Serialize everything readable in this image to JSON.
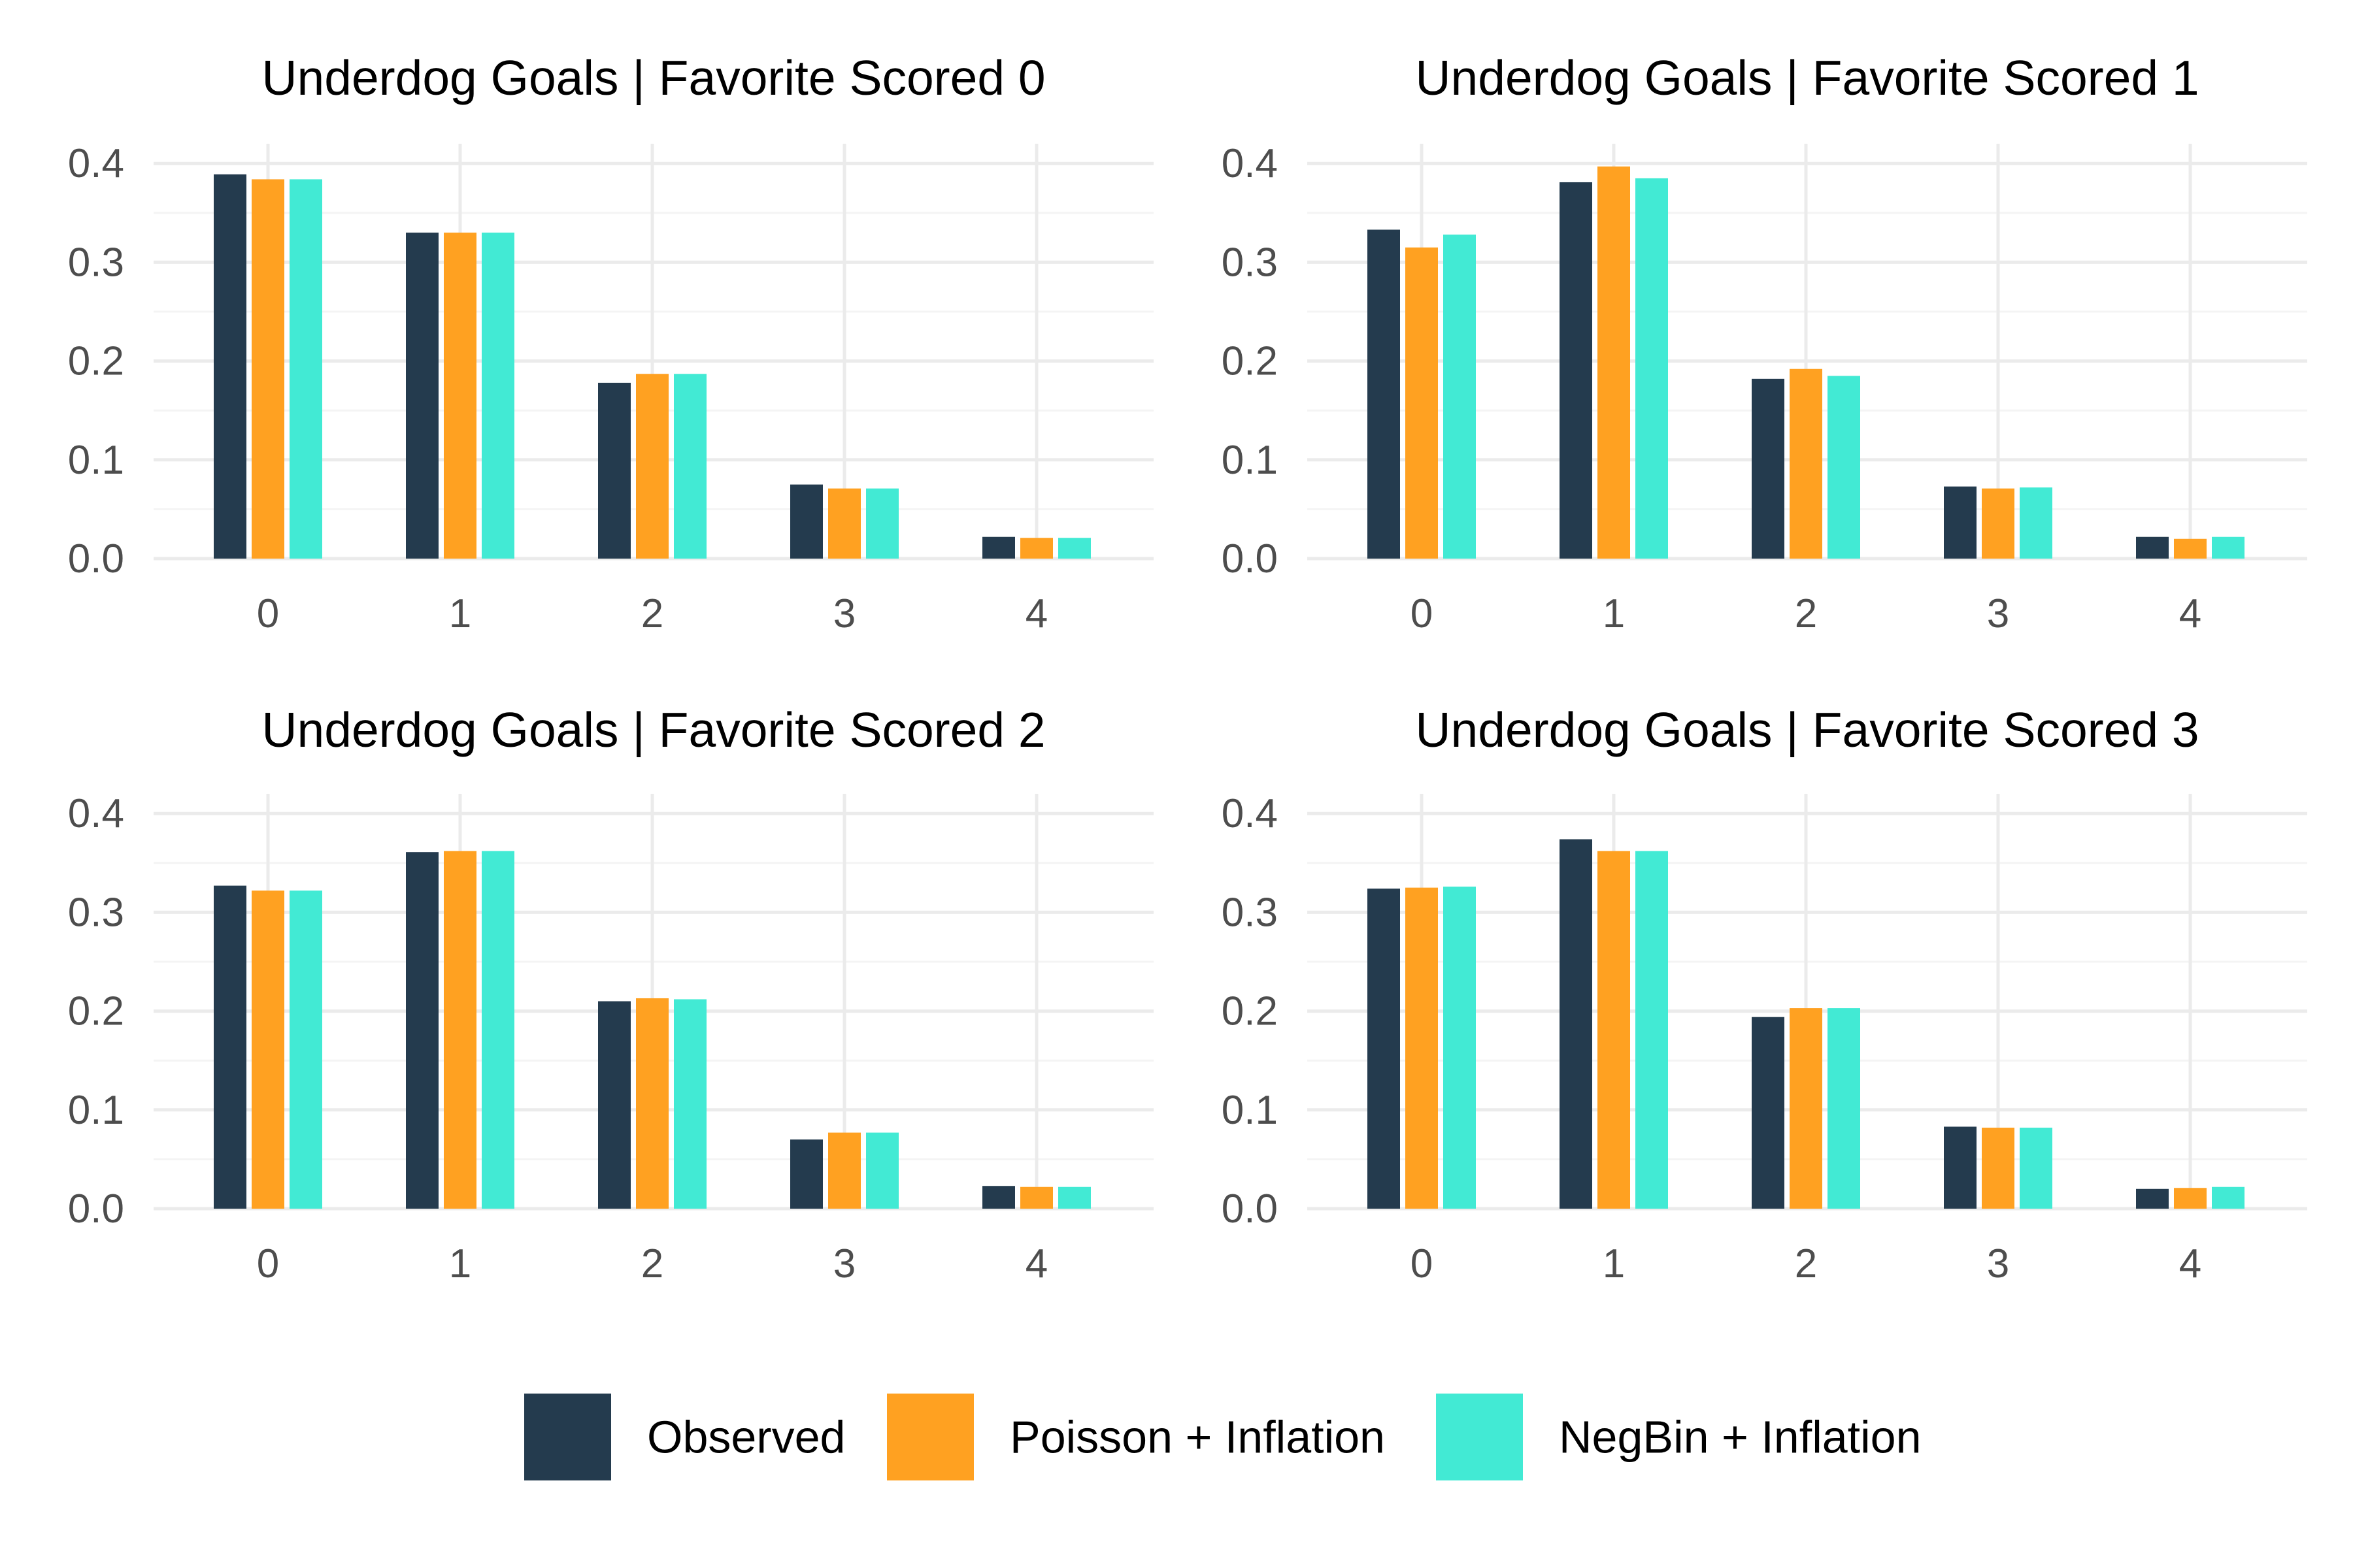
{
  "colors": {
    "observed": "#243B4E",
    "poisson": "#FFA121",
    "negbin": "#42EAD4",
    "grid_major": "#EBEBEB",
    "grid_minor": "#F4F4F4",
    "tick_text": "#4D4D4D"
  },
  "legend": {
    "position": "bottom",
    "items": [
      {
        "key": "observed",
        "label": "Observed"
      },
      {
        "key": "poisson",
        "label": "Poisson + Inflation"
      },
      {
        "key": "negbin",
        "label": "NegBin + Inflation"
      }
    ]
  },
  "chart_data": [
    {
      "type": "bar",
      "title": "Underdog Goals | Favorite Scored 0",
      "categories": [
        "0",
        "1",
        "2",
        "3",
        "4"
      ],
      "y_ticks": [
        "0.0",
        "0.1",
        "0.2",
        "0.3",
        "0.4"
      ],
      "ylim": [
        0,
        0.42
      ],
      "grid": true,
      "series": [
        {
          "name": "Observed",
          "values": [
            0.389,
            0.33,
            0.178,
            0.075,
            0.022
          ]
        },
        {
          "name": "Poisson + Inflation",
          "values": [
            0.384,
            0.33,
            0.187,
            0.071,
            0.021
          ]
        },
        {
          "name": "NegBin + Inflation",
          "values": [
            0.384,
            0.33,
            0.187,
            0.071,
            0.021
          ]
        }
      ]
    },
    {
      "type": "bar",
      "title": "Underdog Goals | Favorite Scored 1",
      "categories": [
        "0",
        "1",
        "2",
        "3",
        "4"
      ],
      "y_ticks": [
        "0.0",
        "0.1",
        "0.2",
        "0.3",
        "0.4"
      ],
      "ylim": [
        0,
        0.42
      ],
      "grid": true,
      "series": [
        {
          "name": "Observed",
          "values": [
            0.333,
            0.381,
            0.182,
            0.073,
            0.022
          ]
        },
        {
          "name": "Poisson + Inflation",
          "values": [
            0.315,
            0.397,
            0.192,
            0.071,
            0.02
          ]
        },
        {
          "name": "NegBin + Inflation",
          "values": [
            0.328,
            0.385,
            0.185,
            0.072,
            0.022
          ]
        }
      ]
    },
    {
      "type": "bar",
      "title": "Underdog Goals | Favorite Scored 2",
      "categories": [
        "0",
        "1",
        "2",
        "3",
        "4"
      ],
      "y_ticks": [
        "0.0",
        "0.1",
        "0.2",
        "0.3",
        "0.4"
      ],
      "ylim": [
        0,
        0.42
      ],
      "grid": true,
      "series": [
        {
          "name": "Observed",
          "values": [
            0.327,
            0.361,
            0.21,
            0.07,
            0.023
          ]
        },
        {
          "name": "Poisson + Inflation",
          "values": [
            0.322,
            0.362,
            0.213,
            0.077,
            0.022
          ]
        },
        {
          "name": "NegBin + Inflation",
          "values": [
            0.322,
            0.362,
            0.212,
            0.077,
            0.022
          ]
        }
      ]
    },
    {
      "type": "bar",
      "title": "Underdog Goals | Favorite Scored 3",
      "categories": [
        "0",
        "1",
        "2",
        "3",
        "4"
      ],
      "y_ticks": [
        "0.0",
        "0.1",
        "0.2",
        "0.3",
        "0.4"
      ],
      "ylim": [
        0,
        0.42
      ],
      "grid": true,
      "series": [
        {
          "name": "Observed",
          "values": [
            0.324,
            0.374,
            0.194,
            0.083,
            0.02
          ]
        },
        {
          "name": "Poisson + Inflation",
          "values": [
            0.325,
            0.362,
            0.203,
            0.082,
            0.021
          ]
        },
        {
          "name": "NegBin + Inflation",
          "values": [
            0.326,
            0.362,
            0.203,
            0.082,
            0.022
          ]
        }
      ]
    }
  ]
}
